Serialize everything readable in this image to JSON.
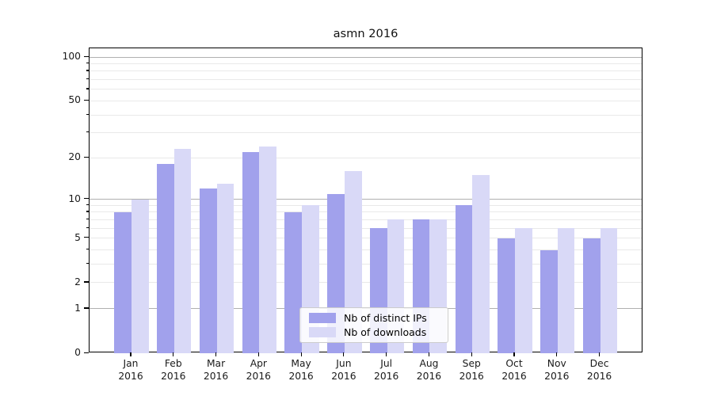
{
  "title": "asmn 2016",
  "chart_data": {
    "type": "bar",
    "title": "asmn 2016",
    "x_months": [
      "Jan",
      "Feb",
      "Mar",
      "Apr",
      "May",
      "Jun",
      "Jul",
      "Aug",
      "Sep",
      "Oct",
      "Nov",
      "Dec"
    ],
    "x_year": "2016",
    "series": [
      {
        "name": "Nb of distinct IPs",
        "color": "#a1a1ec",
        "values": [
          8,
          18,
          12,
          22,
          8,
          11,
          6,
          7,
          9,
          5,
          4,
          5
        ]
      },
      {
        "name": "Nb of downloads",
        "color": "#d9d9f7",
        "values": [
          10,
          23,
          13,
          24,
          9,
          16,
          7,
          7,
          15,
          6,
          6,
          6
        ]
      }
    ],
    "yscale": "log10(1+v)",
    "ylim": [
      0,
      115
    ],
    "ytick_labels": [
      100,
      50,
      20,
      10,
      5,
      2,
      1,
      0
    ],
    "grid_major": [
      1,
      10,
      100
    ],
    "grid_minor": [
      2,
      3,
      4,
      5,
      6,
      7,
      8,
      9,
      20,
      30,
      40,
      50,
      60,
      70,
      80,
      90
    ],
    "legend_position": "lower center inside plot",
    "colors": {
      "grid_major": "#b0b0b0",
      "grid_minor": "#e9e9e9",
      "spine": "#000000",
      "text": "#1a1a1a"
    }
  }
}
